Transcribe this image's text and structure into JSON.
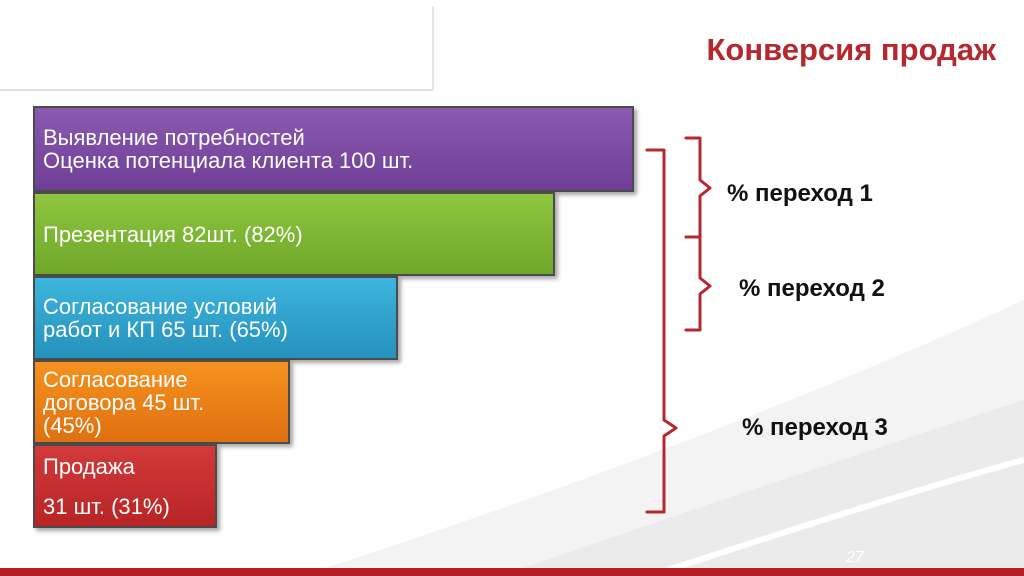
{
  "slide": {
    "title": "Конверсия продаж",
    "page_number": "27",
    "accent_color": "#b5282e"
  },
  "chart_data": {
    "type": "bar",
    "orientation": "horizontal funnel",
    "stages": [
      {
        "lines": [
          "Выявление потребностей",
          "Оценка потенциала клиента 100 шт."
        ],
        "value": 100,
        "color": "#7b4aa3"
      },
      {
        "lines": [
          "Презентация 82шт. (82%)"
        ],
        "value": 82,
        "color": "#7db834"
      },
      {
        "lines": [
          "Согласование условий",
          "работ и КП 65 шт. (65%)"
        ],
        "value": 65,
        "color": "#2fa3cf"
      },
      {
        "lines": [
          "Согласование",
          "договора 45 шт.",
          "(45%)"
        ],
        "value": 45,
        "color": "#ea8018"
      },
      {
        "lines": [
          "Продажа",
          "31 шт. (31%)"
        ],
        "value": 31,
        "color": "#c52f2f"
      }
    ],
    "transitions": [
      {
        "label": "% переход 1"
      },
      {
        "label": "% переход 2"
      },
      {
        "label": "% переход 3"
      }
    ],
    "bracket_color": "#b5282e"
  }
}
